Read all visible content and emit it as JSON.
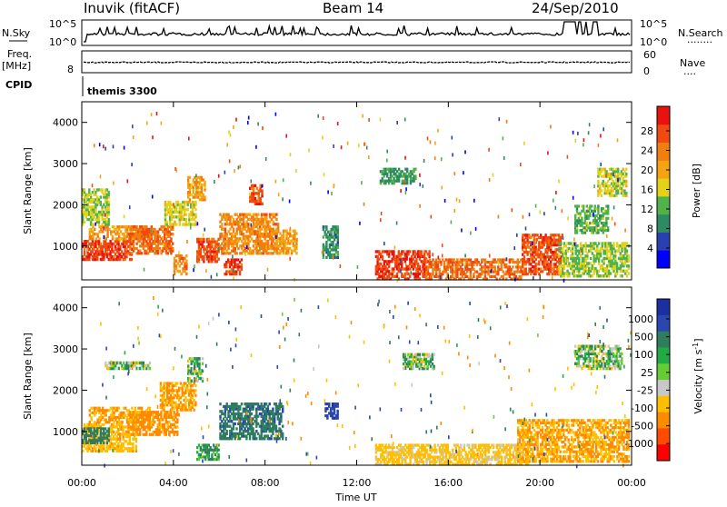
{
  "header": {
    "title": "Inuvik (fitACF)",
    "beam": "Beam 14",
    "date": "24/Sep/2010"
  },
  "strip1": {
    "left_label": "N.Sky",
    "left_ticks": [
      "10^5",
      "10^0"
    ],
    "right_ticks": [
      "10^5",
      "10^0"
    ],
    "right_label": "N.Search",
    "right_marker": "........"
  },
  "strip2": {
    "left_label_1": "Freq.",
    "left_label_2": "[MHz]",
    "left_tick": "8",
    "right_ticks": [
      "60",
      "0"
    ],
    "right_label": "Nave",
    "right_marker": "...."
  },
  "cpid": {
    "label": "CPID",
    "value": "themis 3300"
  },
  "axes": {
    "ylabel": "Slant Range [km]",
    "xlabel": "Time UT",
    "y_ticks": [
      "4000",
      "3000",
      "2000",
      "1000"
    ],
    "x_ticks": [
      "00:00",
      "04:00",
      "08:00",
      "12:00",
      "16:00",
      "20:00",
      "00:00"
    ]
  },
  "colors": {
    "power": [
      "#0000ff",
      "#2a3fb0",
      "#2e8a63",
      "#4fb24a",
      "#e3d11a",
      "#f5a312",
      "#f07e10",
      "#f04a10",
      "#e8120e"
    ],
    "velocity": [
      "#ff0000",
      "#ff4b00",
      "#ff8a00",
      "#ffbf00",
      "#c8c8c8",
      "#66cc33",
      "#22aa44",
      "#2e7d5e",
      "#2a46b0",
      "#1a2fa0"
    ]
  },
  "chart_data": [
    {
      "type": "heatmap",
      "panel": "power",
      "ylabel": "Slant Range [km]",
      "colorbar_label": "Power [dB]",
      "colorbar_ticks": [
        "28",
        "24",
        "20",
        "16",
        "12",
        "8",
        "4"
      ],
      "xlim": [
        "00:00",
        "00:00"
      ],
      "ylim": [
        180,
        4500
      ],
      "blobs": [
        {
          "t0": 0.0,
          "t1": 2.2,
          "r0": 650,
          "r1": 1150,
          "value": 27
        },
        {
          "t0": 0.3,
          "t1": 2.8,
          "r0": 1150,
          "r1": 1500,
          "value": 20
        },
        {
          "t0": 0.0,
          "t1": 1.2,
          "r0": 1500,
          "r1": 2400,
          "value": 14
        },
        {
          "t0": 2.0,
          "t1": 4.0,
          "r0": 800,
          "r1": 1500,
          "value": 24
        },
        {
          "t0": 3.6,
          "t1": 5.0,
          "r0": 1500,
          "r1": 2100,
          "value": 16
        },
        {
          "t0": 4.6,
          "t1": 5.4,
          "r0": 2100,
          "r1": 2700,
          "value": 20
        },
        {
          "t0": 4.0,
          "t1": 4.6,
          "r0": 300,
          "r1": 800,
          "value": 22
        },
        {
          "t0": 5.0,
          "t1": 6.0,
          "r0": 600,
          "r1": 1200,
          "value": 26
        },
        {
          "t0": 6.0,
          "t1": 8.6,
          "r0": 800,
          "r1": 1800,
          "value": 22
        },
        {
          "t0": 7.3,
          "t1": 7.9,
          "r0": 2000,
          "r1": 2500,
          "value": 26
        },
        {
          "t0": 6.2,
          "t1": 7.0,
          "r0": 300,
          "r1": 700,
          "value": 27
        },
        {
          "t0": 8.4,
          "t1": 9.4,
          "r0": 800,
          "r1": 1400,
          "value": 20
        },
        {
          "t0": 10.5,
          "t1": 11.2,
          "r0": 700,
          "r1": 1500,
          "value": 9
        },
        {
          "t0": 12.8,
          "t1": 15.2,
          "r0": 180,
          "r1": 900,
          "value": 27
        },
        {
          "t0": 13.0,
          "t1": 14.6,
          "r0": 2500,
          "r1": 2900,
          "value": 10
        },
        {
          "t0": 15.0,
          "t1": 19.2,
          "r0": 180,
          "r1": 700,
          "value": 24
        },
        {
          "t0": 19.2,
          "t1": 21.0,
          "r0": 300,
          "r1": 1300,
          "value": 26
        },
        {
          "t0": 20.8,
          "t1": 23.9,
          "r0": 250,
          "r1": 1100,
          "value": 14
        },
        {
          "t0": 22.5,
          "t1": 23.8,
          "r0": 2200,
          "r1": 2900,
          "value": 15
        },
        {
          "t0": 21.5,
          "t1": 23.0,
          "r0": 1300,
          "r1": 2000,
          "value": 12
        }
      ]
    },
    {
      "type": "heatmap",
      "panel": "velocity",
      "ylabel": "Slant Range [km]",
      "colorbar_label": "Velocity [m s^-1]",
      "colorbar_ticks": [
        "1000",
        "500",
        "100",
        "25",
        "-25",
        "-100",
        "-500",
        "-1000"
      ],
      "xlim": [
        "00:00",
        "00:00"
      ],
      "ylim": [
        180,
        4500
      ],
      "blobs": [
        {
          "t0": 0.0,
          "t1": 2.4,
          "r0": 500,
          "r1": 1200,
          "value": -400
        },
        {
          "t0": 0.0,
          "t1": 1.2,
          "r0": 700,
          "r1": 1100,
          "value": 300
        },
        {
          "t0": 0.3,
          "t1": 3.0,
          "r0": 1200,
          "r1": 1600,
          "value": -500
        },
        {
          "t0": 2.0,
          "t1": 4.2,
          "r0": 900,
          "r1": 1500,
          "value": -600
        },
        {
          "t0": 3.4,
          "t1": 5.0,
          "r0": 1500,
          "r1": 2200,
          "value": -500
        },
        {
          "t0": 1.0,
          "t1": 3.0,
          "r0": 2500,
          "r1": 2700,
          "value": 0
        },
        {
          "t0": 4.6,
          "t1": 5.3,
          "r0": 2200,
          "r1": 2800,
          "value": 0
        },
        {
          "t0": 6.0,
          "t1": 8.8,
          "r0": 800,
          "r1": 1700,
          "value": 400
        },
        {
          "t0": 5.0,
          "t1": 6.0,
          "r0": 300,
          "r1": 700,
          "value": 120
        },
        {
          "t0": 10.6,
          "t1": 11.2,
          "r0": 1300,
          "r1": 1700,
          "value": 900
        },
        {
          "t0": 12.8,
          "t1": 19.5,
          "r0": 180,
          "r1": 700,
          "value": -200
        },
        {
          "t0": 14.0,
          "t1": 15.4,
          "r0": 2500,
          "r1": 2900,
          "value": 0
        },
        {
          "t0": 19.0,
          "t1": 23.9,
          "r0": 250,
          "r1": 1300,
          "value": -500
        },
        {
          "t0": 21.5,
          "t1": 23.6,
          "r0": 2500,
          "r1": 3100,
          "value": 0
        }
      ]
    }
  ]
}
